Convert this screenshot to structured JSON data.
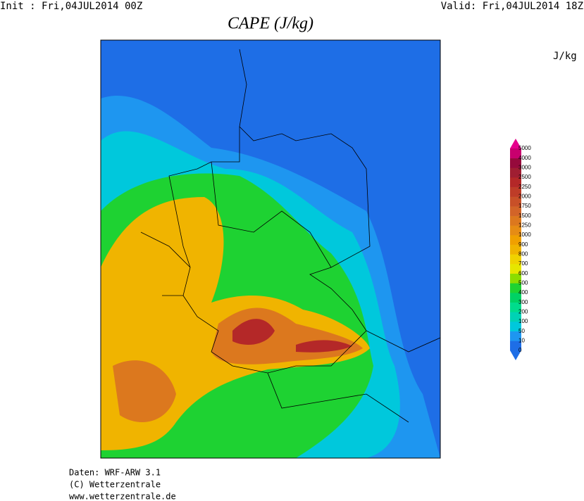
{
  "header": {
    "init": "Init : Fri,04JUL2014 00Z",
    "valid": "Valid: Fri,04JUL2014 18Z",
    "title": "CAPE (J/kg)",
    "unit": "J/kg"
  },
  "colorbar": {
    "levels": [
      {
        "label": "0",
        "color": "#1e6ee6"
      },
      {
        "label": "10",
        "color": "#1e96f0"
      },
      {
        "label": "50",
        "color": "#00c8dc"
      },
      {
        "label": "100",
        "color": "#00d2b4"
      },
      {
        "label": "200",
        "color": "#00dc8c"
      },
      {
        "label": "300",
        "color": "#00d264"
      },
      {
        "label": "400",
        "color": "#1ed232"
      },
      {
        "label": "500",
        "color": "#8cdc00"
      },
      {
        "label": "600",
        "color": "#e6e600"
      },
      {
        "label": "700",
        "color": "#f0d200"
      },
      {
        "label": "800",
        "color": "#f0b400"
      },
      {
        "label": "900",
        "color": "#f0a000"
      },
      {
        "label": "1000",
        "color": "#e68c14"
      },
      {
        "label": "1250",
        "color": "#dc781e"
      },
      {
        "label": "1500",
        "color": "#d26428"
      },
      {
        "label": "1750",
        "color": "#c85028"
      },
      {
        "label": "2000",
        "color": "#be3c28"
      },
      {
        "label": "2250",
        "color": "#b42828"
      },
      {
        "label": "2500",
        "color": "#a01e32"
      },
      {
        "label": "3000",
        "color": "#960a3c"
      },
      {
        "label": "4000",
        "color": "#c8006e"
      },
      {
        "label": "5000",
        "color": "#e6008c"
      }
    ]
  },
  "footer": {
    "lines": [
      "Daten: WRF-ARW 3.1",
      "(C) Wetterzentrale",
      "www.wetterzentrale.de"
    ]
  }
}
